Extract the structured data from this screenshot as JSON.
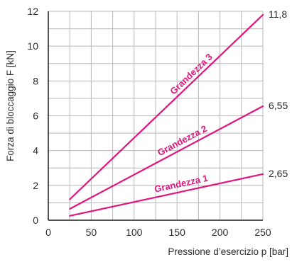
{
  "chart_data": {
    "type": "line",
    "xlabel": "Pressione d’esercizio p [bar]",
    "ylabel": "Forza di bloccaggio F [kN]",
    "xlim": [
      0,
      250
    ],
    "ylim": [
      0,
      12
    ],
    "x_ticks": [
      0,
      50,
      100,
      150,
      200,
      250
    ],
    "y_ticks": [
      0,
      2,
      4,
      6,
      8,
      10,
      12
    ],
    "grid": true,
    "line_color": "#e0157f",
    "grid_color": "#b8b8b8",
    "series": [
      {
        "name": "Grandezza 1",
        "x": [
          25,
          250
        ],
        "y": [
          0.25,
          2.65
        ],
        "end_label": "2,65"
      },
      {
        "name": "Grandezza 2",
        "x": [
          25,
          250
        ],
        "y": [
          0.65,
          6.55
        ],
        "end_label": "6,55"
      },
      {
        "name": "Grandezza 3",
        "x": [
          25,
          250
        ],
        "y": [
          1.2,
          11.8
        ],
        "end_label": "11,8"
      }
    ]
  }
}
